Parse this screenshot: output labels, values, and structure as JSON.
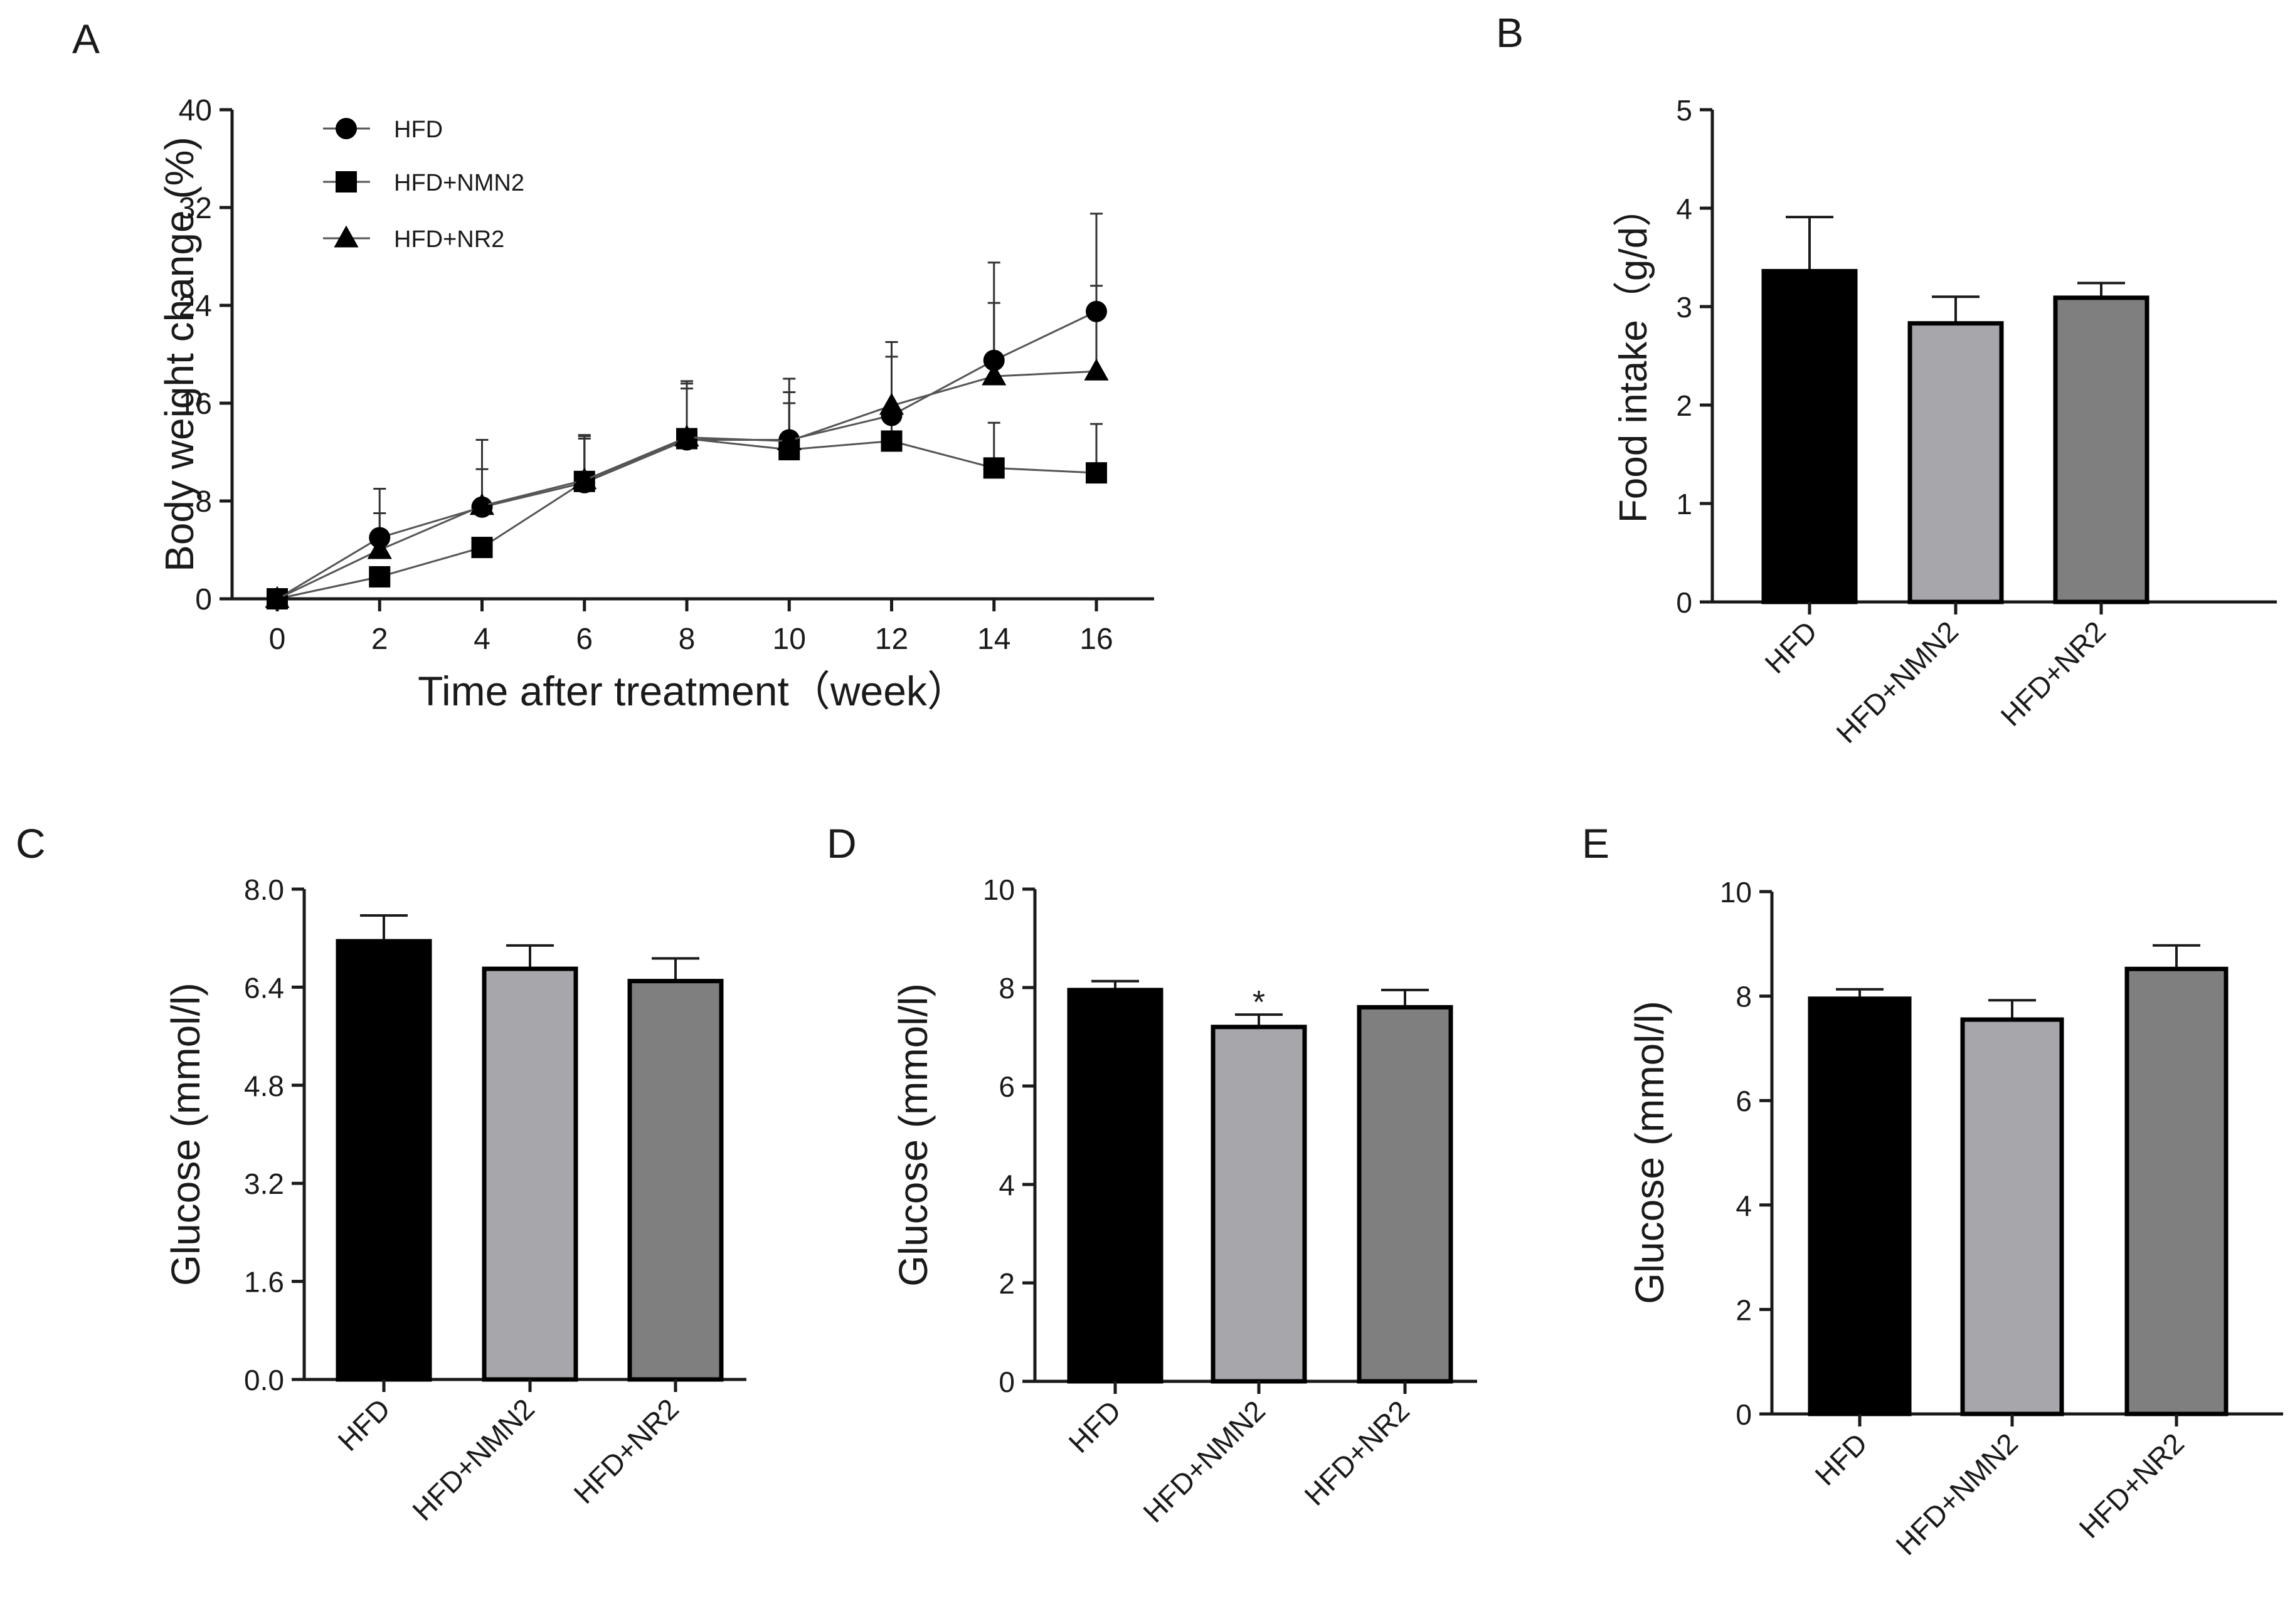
{
  "figure": {
    "panel_letters": [
      "A",
      "B",
      "C",
      "D",
      "E"
    ]
  },
  "chart_data": [
    {
      "panel": "A",
      "type": "line",
      "title": "",
      "xlabel": "Time after treatment（week）",
      "ylabel": "Body weight change (%)",
      "x": [
        0,
        2,
        4,
        6,
        8,
        10,
        12,
        14,
        16
      ],
      "xlim": [
        0,
        16.8
      ],
      "xticks": [
        "0",
        "2",
        "4",
        "6",
        "8",
        "10",
        "12",
        "14",
        "16"
      ],
      "ylim": [
        0,
        40
      ],
      "yticks": [
        "0",
        "8",
        "16",
        "24",
        "32",
        "40"
      ],
      "grid": false,
      "legend": "top-left",
      "series": [
        {
          "name": "HFD",
          "marker": "circle",
          "values": [
            0,
            5,
            7.5,
            9.5,
            13,
            13,
            15,
            19.5,
            23.5
          ],
          "errors": [
            0,
            4,
            5.5,
            3.8,
            4.8,
            5,
            6,
            8,
            8
          ]
        },
        {
          "name": "HFD+NMN2",
          "marker": "square",
          "values": [
            0,
            1.8,
            4.2,
            9.6,
            13.1,
            12.2,
            12.9,
            10.7,
            10.3
          ],
          "errors": [
            0,
            0,
            0,
            3.5,
            4.5,
            3.8,
            2,
            3.7,
            4
          ]
        },
        {
          "name": "HFD+NR2",
          "marker": "triangle",
          "values": [
            0,
            4,
            7.6,
            9.7,
            13.2,
            12.9,
            15.8,
            18.2,
            18.6
          ],
          "errors": [
            0,
            3,
            3,
            3.7,
            4,
            4,
            4,
            6,
            7
          ]
        }
      ]
    },
    {
      "panel": "B",
      "type": "bar",
      "title": "",
      "xlabel": "",
      "ylabel": "Food intake（g/d）",
      "categories": [
        "HFD",
        "HFD+NMN2",
        "HFD+NR2"
      ],
      "values": [
        3.36,
        2.83,
        3.09
      ],
      "errors": [
        0.55,
        0.27,
        0.15
      ],
      "colors": [
        "#000000",
        "#a6a6ab",
        "#7f7f7f"
      ],
      "ylim": [
        0,
        5
      ],
      "yticks": [
        "0",
        "1",
        "2",
        "3",
        "4",
        "5"
      ],
      "annotations": [
        "",
        "",
        ""
      ]
    },
    {
      "panel": "C",
      "type": "bar",
      "title": "",
      "xlabel": "",
      "ylabel": "Glucose (mmol/l)",
      "categories": [
        "HFD",
        "HFD+NMN2",
        "HFD+NR2"
      ],
      "values": [
        7.15,
        6.7,
        6.5
      ],
      "errors": [
        0.42,
        0.38,
        0.37
      ],
      "colors": [
        "#000000",
        "#a6a6ab",
        "#7f7f7f"
      ],
      "ylim": [
        0,
        8
      ],
      "yticks": [
        "0.0",
        "1.6",
        "3.2",
        "4.8",
        "6.4",
        "8.0"
      ],
      "annotations": [
        "",
        "",
        ""
      ]
    },
    {
      "panel": "D",
      "type": "bar",
      "title": "",
      "xlabel": "",
      "ylabel": "Glucose (mmol/l)",
      "categories": [
        "HFD",
        "HFD+NMN2",
        "HFD+NR2"
      ],
      "values": [
        7.95,
        7.2,
        7.6
      ],
      "errors": [
        0.18,
        0.25,
        0.35
      ],
      "colors": [
        "#000000",
        "#a6a6ab",
        "#7f7f7f"
      ],
      "ylim": [
        0,
        10
      ],
      "yticks": [
        "0",
        "2",
        "4",
        "6",
        "8",
        "10"
      ],
      "annotations": [
        "",
        "*",
        ""
      ]
    },
    {
      "panel": "E",
      "type": "bar",
      "title": "",
      "xlabel": "",
      "ylabel": "Glucose (mmol/l)",
      "categories": [
        "HFD",
        "HFD+NMN2",
        "HFD+NR2"
      ],
      "values": [
        7.95,
        7.55,
        8.52
      ],
      "errors": [
        0.18,
        0.37,
        0.45
      ],
      "colors": [
        "#000000",
        "#a6a6ab",
        "#7f7f7f"
      ],
      "ylim": [
        0,
        10
      ],
      "yticks": [
        "0",
        "2",
        "4",
        "6",
        "8",
        "10"
      ],
      "annotations": [
        "",
        "",
        ""
      ]
    }
  ]
}
